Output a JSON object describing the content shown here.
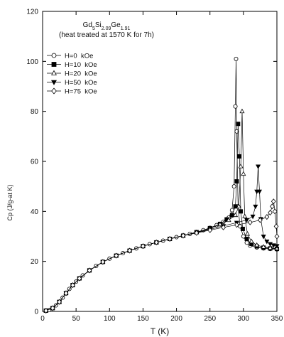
{
  "chart_data": {
    "type": "scatter",
    "title_lines": [
      {
        "parts": [
          {
            "text": "Gd",
            "sub": false
          },
          {
            "text": "5",
            "sub": true
          },
          {
            "text": "Si",
            "sub": false
          },
          {
            "text": "2.09",
            "sub": true
          },
          {
            "text": "Ge",
            "sub": false
          },
          {
            "text": "1.91",
            "sub": true
          }
        ]
      },
      {
        "parts": [
          {
            "text": "(heat treated at 1570 K for 7h)",
            "sub": false
          }
        ]
      }
    ],
    "xlabel": "T (K)",
    "ylabel": "Cp (J/g-at K)",
    "xlim": [
      0,
      350
    ],
    "ylim": [
      0,
      120
    ],
    "xticks": [
      0,
      50,
      100,
      150,
      200,
      250,
      300,
      350
    ],
    "yticks": [
      0,
      20,
      40,
      60,
      80,
      100,
      120
    ],
    "grid": false,
    "legend_position": "top-left",
    "series": [
      {
        "name": "H=0  kOe",
        "marker": "circle-open",
        "values": [
          [
            5,
            0.3
          ],
          [
            10,
            0.6
          ],
          [
            15,
            1.3
          ],
          [
            20,
            2.4
          ],
          [
            25,
            3.8
          ],
          [
            30,
            5.5
          ],
          [
            35,
            7.3
          ],
          [
            40,
            9.0
          ],
          [
            45,
            10.5
          ],
          [
            50,
            11.9
          ],
          [
            55,
            13.2
          ],
          [
            60,
            14.4
          ],
          [
            70,
            16.4
          ],
          [
            80,
            18.2
          ],
          [
            90,
            19.8
          ],
          [
            100,
            21.1
          ],
          [
            110,
            22.3
          ],
          [
            120,
            23.3
          ],
          [
            130,
            24.3
          ],
          [
            140,
            25.2
          ],
          [
            150,
            26.1
          ],
          [
            160,
            26.9
          ],
          [
            170,
            27.6
          ],
          [
            180,
            28.3
          ],
          [
            190,
            29.0
          ],
          [
            200,
            29.7
          ],
          [
            210,
            30.3
          ],
          [
            220,
            31.0
          ],
          [
            230,
            31.7
          ],
          [
            240,
            32.5
          ],
          [
            250,
            33.4
          ],
          [
            260,
            34.5
          ],
          [
            270,
            35.8
          ],
          [
            278,
            37.5
          ],
          [
            283,
            40.5
          ],
          [
            286,
            50.0
          ],
          [
            288,
            82.0
          ],
          [
            289,
            101.0
          ],
          [
            290,
            72.0
          ],
          [
            292,
            42.0
          ],
          [
            295,
            34.0
          ],
          [
            300,
            30.0
          ],
          [
            305,
            27.5
          ],
          [
            310,
            26.3
          ],
          [
            320,
            25.6
          ],
          [
            330,
            25.2
          ],
          [
            340,
            25.0
          ],
          [
            350,
            24.8
          ]
        ]
      },
      {
        "name": "H=10  kOe",
        "marker": "square-filled",
        "values": [
          [
            5,
            0.3
          ],
          [
            15,
            1.3
          ],
          [
            25,
            3.8
          ],
          [
            35,
            7.3
          ],
          [
            45,
            10.5
          ],
          [
            55,
            13.2
          ],
          [
            70,
            16.4
          ],
          [
            90,
            19.8
          ],
          [
            110,
            22.3
          ],
          [
            130,
            24.3
          ],
          [
            150,
            26.1
          ],
          [
            170,
            27.6
          ],
          [
            190,
            29.0
          ],
          [
            210,
            30.3
          ],
          [
            230,
            31.7
          ],
          [
            250,
            33.3
          ],
          [
            265,
            35.0
          ],
          [
            275,
            36.8
          ],
          [
            283,
            38.5
          ],
          [
            288,
            42.0
          ],
          [
            290,
            52.0
          ],
          [
            292,
            75.0
          ],
          [
            294,
            62.0
          ],
          [
            296,
            40.0
          ],
          [
            299,
            33.0
          ],
          [
            305,
            29.0
          ],
          [
            312,
            27.0
          ],
          [
            320,
            26.0
          ],
          [
            330,
            25.5
          ],
          [
            340,
            25.2
          ],
          [
            350,
            25.0
          ]
        ]
      },
      {
        "name": "H=20  kOe",
        "marker": "triangle-up-open",
        "values": [
          [
            5,
            0.3
          ],
          [
            15,
            1.3
          ],
          [
            25,
            3.8
          ],
          [
            35,
            7.3
          ],
          [
            45,
            10.5
          ],
          [
            55,
            13.2
          ],
          [
            70,
            16.4
          ],
          [
            90,
            19.8
          ],
          [
            110,
            22.3
          ],
          [
            130,
            24.3
          ],
          [
            150,
            26.1
          ],
          [
            170,
            27.6
          ],
          [
            190,
            29.0
          ],
          [
            210,
            30.3
          ],
          [
            230,
            31.6
          ],
          [
            250,
            33.1
          ],
          [
            265,
            34.8
          ],
          [
            278,
            36.5
          ],
          [
            288,
            38.5
          ],
          [
            293,
            42.0
          ],
          [
            296,
            58.0
          ],
          [
            298,
            80.0
          ],
          [
            300,
            55.0
          ],
          [
            302,
            38.0
          ],
          [
            306,
            31.0
          ],
          [
            312,
            28.0
          ],
          [
            320,
            26.5
          ],
          [
            330,
            25.8
          ],
          [
            340,
            25.4
          ],
          [
            350,
            25.2
          ]
        ]
      },
      {
        "name": "H=50  kOe",
        "marker": "triangle-down-filled",
        "values": [
          [
            5,
            0.3
          ],
          [
            15,
            1.3
          ],
          [
            25,
            3.8
          ],
          [
            35,
            7.3
          ],
          [
            45,
            10.5
          ],
          [
            55,
            13.2
          ],
          [
            70,
            16.4
          ],
          [
            90,
            19.8
          ],
          [
            110,
            22.3
          ],
          [
            130,
            24.3
          ],
          [
            150,
            26.1
          ],
          [
            170,
            27.6
          ],
          [
            190,
            29.0
          ],
          [
            210,
            30.3
          ],
          [
            230,
            31.5
          ],
          [
            250,
            32.8
          ],
          [
            270,
            34.2
          ],
          [
            290,
            35.5
          ],
          [
            305,
            36.6
          ],
          [
            314,
            38.0
          ],
          [
            318,
            42.0
          ],
          [
            320,
            48.0
          ],
          [
            322,
            58.0
          ],
          [
            324,
            48.0
          ],
          [
            326,
            37.0
          ],
          [
            330,
            30.0
          ],
          [
            335,
            28.0
          ],
          [
            340,
            27.0
          ],
          [
            345,
            26.5
          ],
          [
            350,
            26.2
          ]
        ]
      },
      {
        "name": "H=75  kOe",
        "marker": "diamond-open",
        "values": [
          [
            5,
            0.3
          ],
          [
            15,
            1.3
          ],
          [
            25,
            3.8
          ],
          [
            35,
            7.3
          ],
          [
            45,
            10.5
          ],
          [
            55,
            13.2
          ],
          [
            70,
            16.4
          ],
          [
            90,
            19.8
          ],
          [
            110,
            22.3
          ],
          [
            130,
            24.3
          ],
          [
            150,
            26.1
          ],
          [
            170,
            27.6
          ],
          [
            190,
            29.0
          ],
          [
            210,
            30.3
          ],
          [
            230,
            31.4
          ],
          [
            250,
            32.5
          ],
          [
            270,
            33.6
          ],
          [
            290,
            34.6
          ],
          [
            310,
            35.6
          ],
          [
            325,
            36.5
          ],
          [
            335,
            37.8
          ],
          [
            340,
            39.5
          ],
          [
            343,
            42.0
          ],
          [
            345,
            44.0
          ],
          [
            347,
            40.0
          ],
          [
            349,
            34.0
          ],
          [
            350,
            30.0
          ]
        ]
      }
    ]
  }
}
